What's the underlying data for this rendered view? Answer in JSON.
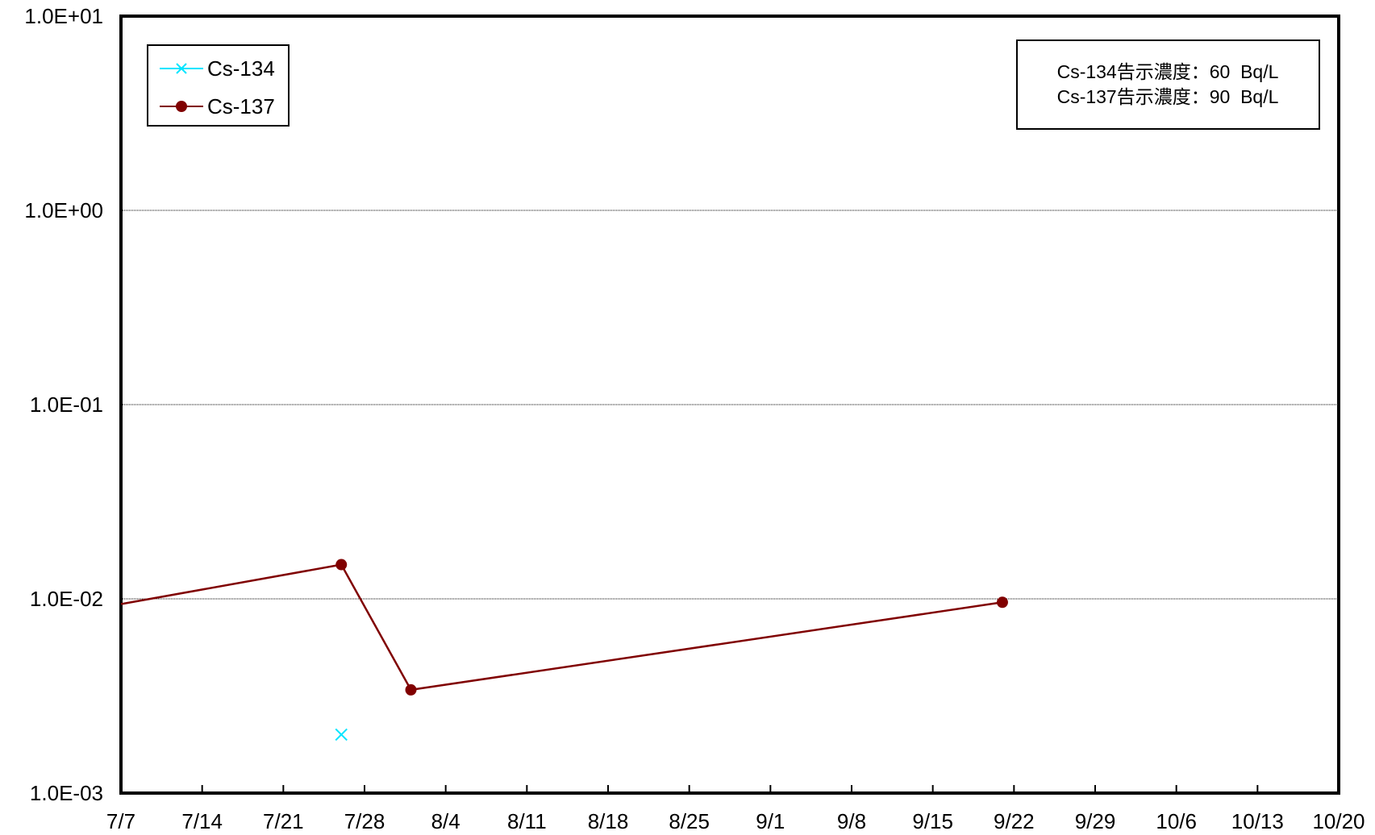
{
  "chart_data": {
    "type": "line",
    "title": "",
    "xlabel": "",
    "ylabel": "",
    "y_scale": "log",
    "ylim": [
      0.001,
      10
    ],
    "y_ticks": [
      "1.0E+01",
      "1.0E+00",
      "1.0E-01",
      "1.0E-02",
      "1.0E-03"
    ],
    "y_tick_values": [
      10,
      1,
      0.1,
      0.01,
      0.001
    ],
    "x_tick_labels": [
      "7/7",
      "7/14",
      "7/21",
      "7/28",
      "8/4",
      "8/11",
      "8/18",
      "8/25",
      "9/1",
      "9/8",
      "9/15",
      "9/22",
      "9/29",
      "10/6",
      "10/13",
      "10/20"
    ],
    "x_tick_dates": [
      "07-07",
      "07-14",
      "07-21",
      "07-28",
      "08-04",
      "08-11",
      "08-18",
      "08-25",
      "09-01",
      "09-08",
      "09-15",
      "09-22",
      "09-29",
      "10-06",
      "10-13",
      "10-20"
    ],
    "grid_y": true,
    "legend_position": "top-left",
    "series": [
      {
        "name": "Cs-134",
        "color": "#00e5ff",
        "marker": "x",
        "points": [
          {
            "x": "07-26",
            "y": 0.002
          }
        ]
      },
      {
        "name": "Cs-137",
        "color": "#800000",
        "marker": "circle",
        "points": [
          {
            "x": "07-26",
            "y": 0.015
          },
          {
            "x": "08-01",
            "y": 0.0034
          },
          {
            "x": "09-21",
            "y": 0.0096
          }
        ],
        "line_enters_from_left": true,
        "entry_value_at_left_edge": 0.0094
      }
    ],
    "annotation": {
      "lines": [
        "Cs-134告示濃度：60  Bq/L",
        "Cs-137告示濃度：90  Bq/L"
      ],
      "position": "top-right"
    }
  }
}
